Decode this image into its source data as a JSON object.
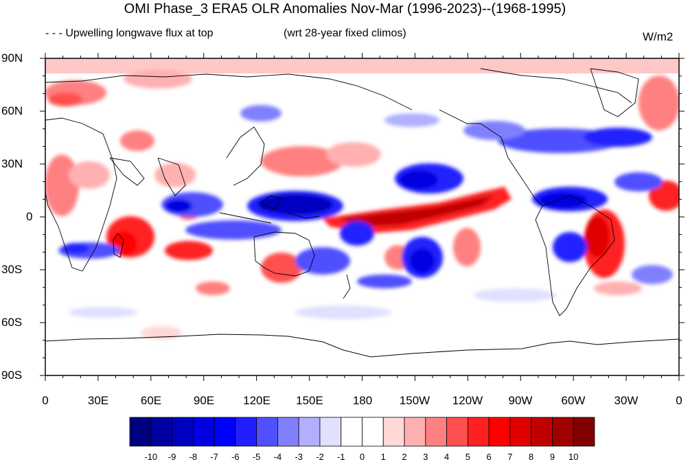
{
  "title": "OMI Phase_3 ERA5 OLR Anomalies Nov-Mar (1996-2023)--(1968-1995)",
  "subtitle_left": "- - - Upwelling longwave flux at top",
  "subtitle_right": "(wrt 28-year fixed climos)",
  "units": "W/m2",
  "lat_labels": [
    "90N",
    "60N",
    "30N",
    "0",
    "30S",
    "60S",
    "90S"
  ],
  "lon_labels": [
    "0",
    "30E",
    "60E",
    "90E",
    "120E",
    "150E",
    "180",
    "150W",
    "120W",
    "90W",
    "60W",
    "30W",
    "0"
  ],
  "colorbar": {
    "labels": [
      "-10",
      "-9",
      "-8",
      "-7",
      "-6",
      "-5",
      "-4",
      "-3",
      "-2",
      "-1",
      "0",
      "1",
      "2",
      "3",
      "4",
      "5",
      "6",
      "7",
      "8",
      "9",
      "10"
    ],
    "colors": [
      "#000080",
      "#0000a0",
      "#0000c0",
      "#0000e0",
      "#0000ff",
      "#2020ff",
      "#5050ff",
      "#8080ff",
      "#b0b0ff",
      "#e0e0ff",
      "#ffffff",
      "#ffffff",
      "#ffd8d8",
      "#ffb0b0",
      "#ff8080",
      "#ff5050",
      "#ff2020",
      "#ff0000",
      "#e00000",
      "#c00000",
      "#a00000",
      "#800000"
    ]
  }
}
